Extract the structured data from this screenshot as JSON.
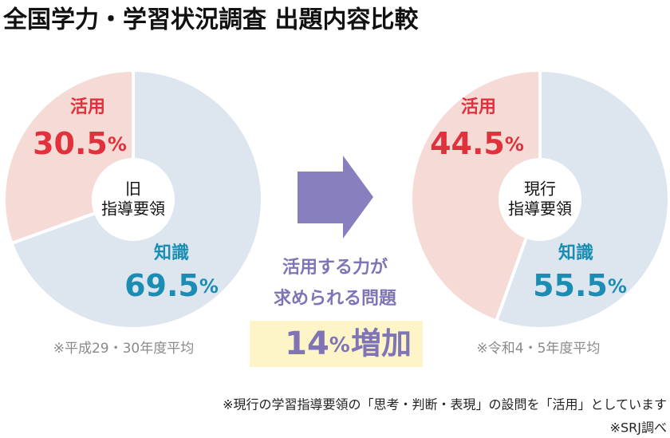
{
  "title": "全国学力・学習状況調査 出題内容比較",
  "chart_data": [
    {
      "type": "pie",
      "categories": [
        "活用",
        "知識"
      ],
      "values": [
        30.5,
        69.5
      ],
      "value_labels": [
        "30.5%",
        "69.5%"
      ],
      "colors": [
        "#f6dad5",
        "#dde6ef"
      ],
      "label_colors": [
        "#e0323c",
        "#1b8db3"
      ],
      "center_label": [
        "旧",
        "指導要領"
      ],
      "note": "※平成29・30年度平均"
    },
    {
      "type": "pie",
      "categories": [
        "活用",
        "知識"
      ],
      "values": [
        44.5,
        55.5
      ],
      "value_labels": [
        "44.5%",
        "55.5%"
      ],
      "colors": [
        "#f6dad5",
        "#dde6ef"
      ],
      "label_colors": [
        "#e0323c",
        "#1b8db3"
      ],
      "center_label": [
        "現行",
        "指導要領"
      ],
      "note": "※令和4・5年度平均"
    }
  ],
  "arrow_text": [
    "活用する力が",
    "求められる問題"
  ],
  "callout": {
    "value_label": "14%",
    "text": "増加"
  },
  "footnotes": [
    "※現行の学習指導要領の「思考・判断・表現」の設問を「活用」としています",
    "※SRJ調べ"
  ]
}
